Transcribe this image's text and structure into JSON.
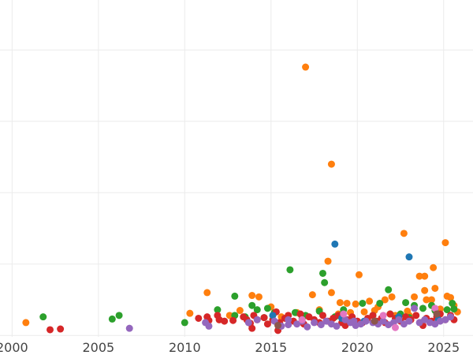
{
  "chart_data": {
    "type": "scatter",
    "title": "",
    "xlabel": "",
    "ylabel": "",
    "xlim": [
      1999.3,
      2026.7
    ],
    "ylim": [
      -2,
      470
    ],
    "x_ticks": [
      2000,
      2005,
      2010,
      2015,
      2020,
      2025
    ],
    "y_gridlines": [
      0,
      100,
      200,
      300,
      400
    ],
    "y_tick_labels_visible": false,
    "grid": true,
    "legend": "none",
    "series": [
      {
        "color": "#ff7f0e",
        "points": [
          [
            2000.8,
            18
          ],
          [
            2010.3,
            31
          ],
          [
            2011.3,
            60
          ],
          [
            2012.0,
            22
          ],
          [
            2013.9,
            56
          ],
          [
            2014.3,
            54
          ],
          [
            2015.0,
            40
          ],
          [
            2016.0,
            28
          ],
          [
            2017.0,
            376
          ],
          [
            2017.4,
            57
          ],
          [
            2017.8,
            36
          ],
          [
            2018.3,
            104
          ],
          [
            2018.5,
            60
          ],
          [
            2018.5,
            240
          ],
          [
            2019.0,
            46
          ],
          [
            2019.4,
            45
          ],
          [
            2019.9,
            44
          ],
          [
            2020.1,
            85
          ],
          [
            2020.7,
            48
          ],
          [
            2021.0,
            35
          ],
          [
            2021.6,
            50
          ],
          [
            2022.0,
            54
          ],
          [
            2022.7,
            143
          ],
          [
            2022.9,
            34
          ],
          [
            2023.3,
            54
          ],
          [
            2023.6,
            83
          ],
          [
            2023.9,
            83
          ],
          [
            2023.9,
            63
          ],
          [
            2024.0,
            50
          ],
          [
            2024.3,
            50
          ],
          [
            2024.4,
            95
          ],
          [
            2024.5,
            66
          ],
          [
            2025.1,
            130
          ],
          [
            2025.2,
            55
          ],
          [
            2025.4,
            53
          ],
          [
            2025.6,
            42
          ],
          [
            2021.2,
            40
          ],
          [
            2016.5,
            32
          ],
          [
            2013.2,
            35
          ],
          [
            2015.6,
            26
          ],
          [
            2018.9,
            30
          ],
          [
            2022.2,
            28
          ],
          [
            2024.8,
            37
          ],
          [
            2012.6,
            28
          ],
          [
            2020.4,
            33
          ],
          [
            2023.0,
            28
          ],
          [
            2019.6,
            32
          ],
          [
            2025.8,
            33
          ]
        ]
      },
      {
        "color": "#2ca02c",
        "points": [
          [
            2001.8,
            26
          ],
          [
            2005.8,
            23
          ],
          [
            2006.2,
            28
          ],
          [
            2010.0,
            18
          ],
          [
            2011.9,
            36
          ],
          [
            2012.9,
            28
          ],
          [
            2012.9,
            55
          ],
          [
            2013.5,
            26
          ],
          [
            2013.9,
            42
          ],
          [
            2014.2,
            36
          ],
          [
            2014.8,
            38
          ],
          [
            2015.2,
            32
          ],
          [
            2016.1,
            92
          ],
          [
            2016.4,
            32
          ],
          [
            2017.0,
            28
          ],
          [
            2017.8,
            34
          ],
          [
            2018.0,
            87
          ],
          [
            2018.1,
            74
          ],
          [
            2018.7,
            26
          ],
          [
            2019.2,
            36
          ],
          [
            2019.7,
            24
          ],
          [
            2020.3,
            45
          ],
          [
            2021.3,
            45
          ],
          [
            2021.8,
            64
          ],
          [
            2022.5,
            30
          ],
          [
            2022.8,
            46
          ],
          [
            2023.3,
            42
          ],
          [
            2023.8,
            38
          ],
          [
            2024.3,
            42
          ],
          [
            2024.5,
            35
          ],
          [
            2025.2,
            36
          ],
          [
            2025.5,
            45
          ],
          [
            2025.6,
            37
          ],
          [
            2016.8,
            24
          ],
          [
            2020.9,
            28
          ],
          [
            2023.0,
            25
          ],
          [
            2014.6,
            25
          ],
          [
            2019.0,
            28
          ],
          [
            2021.9,
            30
          ]
        ]
      },
      {
        "color": "#d62728",
        "points": [
          [
            2002.2,
            8
          ],
          [
            2002.8,
            9
          ],
          [
            2010.8,
            24
          ],
          [
            2011.3,
            26
          ],
          [
            2011.4,
            21
          ],
          [
            2011.9,
            28
          ],
          [
            2012.0,
            22
          ],
          [
            2012.3,
            20
          ],
          [
            2012.8,
            21
          ],
          [
            2013.4,
            26
          ],
          [
            2013.6,
            22
          ],
          [
            2013.8,
            17
          ],
          [
            2014.0,
            28
          ],
          [
            2014.2,
            22
          ],
          [
            2014.6,
            25
          ],
          [
            2014.8,
            16
          ],
          [
            2015.1,
            22
          ],
          [
            2015.3,
            33
          ],
          [
            2015.4,
            7
          ],
          [
            2015.5,
            18
          ],
          [
            2015.8,
            24
          ],
          [
            2016.0,
            28
          ],
          [
            2016.3,
            20
          ],
          [
            2016.7,
            30
          ],
          [
            2016.9,
            16
          ],
          [
            2017.2,
            26
          ],
          [
            2017.5,
            22
          ],
          [
            2017.8,
            18
          ],
          [
            2018.0,
            28
          ],
          [
            2018.3,
            20
          ],
          [
            2018.6,
            24
          ],
          [
            2018.9,
            28
          ],
          [
            2019.1,
            18
          ],
          [
            2019.4,
            22
          ],
          [
            2019.7,
            26
          ],
          [
            2020.0,
            20
          ],
          [
            2020.3,
            18
          ],
          [
            2020.6,
            24
          ],
          [
            2020.9,
            28
          ],
          [
            2021.1,
            20
          ],
          [
            2021.4,
            24
          ],
          [
            2021.6,
            18
          ],
          [
            2021.9,
            30
          ],
          [
            2022.2,
            24
          ],
          [
            2022.5,
            20
          ],
          [
            2022.8,
            26
          ],
          [
            2023.1,
            22
          ],
          [
            2023.4,
            28
          ],
          [
            2023.7,
            18
          ],
          [
            2024.0,
            24
          ],
          [
            2024.3,
            20
          ],
          [
            2024.6,
            26
          ],
          [
            2024.8,
            30
          ],
          [
            2025.1,
            22
          ],
          [
            2025.4,
            28
          ],
          [
            2025.6,
            22
          ],
          [
            2013.9,
            10
          ],
          [
            2019.3,
            14
          ],
          [
            2023.8,
            14
          ]
        ]
      },
      {
        "color": "#1f77b4",
        "points": [
          [
            2018.7,
            128
          ],
          [
            2023.0,
            110
          ],
          [
            2015.1,
            28
          ],
          [
            2019.1,
            24
          ],
          [
            2020.4,
            20
          ],
          [
            2022.4,
            26
          ],
          [
            2024.7,
            22
          ]
        ]
      },
      {
        "color": "#9467bd",
        "points": [
          [
            2006.8,
            10
          ],
          [
            2011.2,
            18
          ],
          [
            2011.4,
            13
          ],
          [
            2013.7,
            18
          ],
          [
            2014.2,
            22
          ],
          [
            2015.2,
            20
          ],
          [
            2015.6,
            13
          ],
          [
            2016.0,
            15
          ],
          [
            2016.5,
            16
          ],
          [
            2016.8,
            20
          ],
          [
            2017.1,
            12
          ],
          [
            2017.5,
            18
          ],
          [
            2017.9,
            15
          ],
          [
            2018.2,
            20
          ],
          [
            2018.5,
            16
          ],
          [
            2018.8,
            13
          ],
          [
            2019.3,
            22
          ],
          [
            2019.6,
            18
          ],
          [
            2019.9,
            14
          ],
          [
            2020.2,
            16
          ],
          [
            2020.5,
            20
          ],
          [
            2020.9,
            18
          ],
          [
            2021.2,
            16
          ],
          [
            2021.5,
            20
          ],
          [
            2021.8,
            15
          ],
          [
            2022.1,
            18
          ],
          [
            2022.4,
            22
          ],
          [
            2022.7,
            16
          ],
          [
            2023.0,
            20
          ],
          [
            2023.3,
            38
          ],
          [
            2023.6,
            18
          ],
          [
            2023.9,
            22
          ],
          [
            2024.2,
            18
          ],
          [
            2024.5,
            16
          ],
          [
            2024.8,
            20
          ],
          [
            2025.1,
            22
          ],
          [
            2025.4,
            26
          ],
          [
            2016.0,
            22
          ],
          [
            2019.8,
            20
          ]
        ]
      },
      {
        "color": "#e377c2",
        "points": [
          [
            2021.5,
            28
          ],
          [
            2022.2,
            11
          ],
          [
            2024.5,
            38
          ],
          [
            2019.2,
            30
          ],
          [
            2016.8,
            22
          ]
        ]
      },
      {
        "color": "#8c564b",
        "points": [
          [
            2015.4,
            14
          ],
          [
            2021.0,
            20
          ],
          [
            2024.6,
            30
          ]
        ]
      }
    ]
  }
}
